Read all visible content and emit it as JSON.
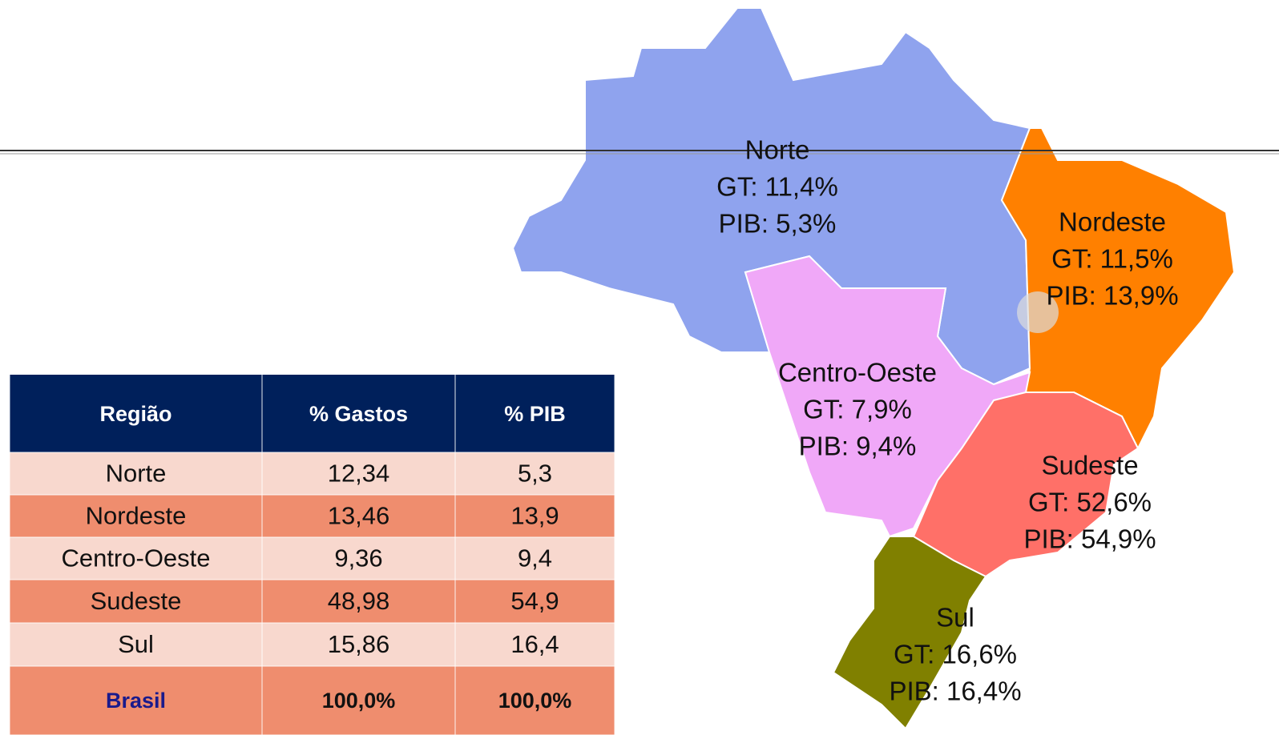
{
  "table": {
    "headers": [
      "Região",
      "% Gastos",
      "% PIB"
    ],
    "rows": [
      [
        "Norte",
        "12,34",
        "5,3"
      ],
      [
        "Nordeste",
        "13,46",
        "13,9"
      ],
      [
        "Centro-Oeste",
        "9,36",
        "9,4"
      ],
      [
        "Sudeste",
        "48,98",
        "54,9"
      ],
      [
        "Sul",
        "15,86",
        "16,4"
      ]
    ],
    "total": [
      "Brasil",
      "100,0%",
      "100,0%"
    ]
  },
  "map": {
    "regions": [
      {
        "name": "Norte",
        "gt": "GT: 11,4%",
        "pib": "PIB: 5,3%"
      },
      {
        "name": "Nordeste",
        "gt": "GT: 11,5%",
        "pib": "PIB: 13,9%"
      },
      {
        "name": "Centro-Oeste",
        "gt": "GT: 7,9%",
        "pib": "PIB: 9,4%"
      },
      {
        "name": "Sudeste",
        "gt": "GT: 52,6%",
        "pib": "PIB: 54,9%"
      },
      {
        "name": "Sul",
        "gt": "GT: 16,6%",
        "pib": "PIB: 16,4%"
      }
    ]
  }
}
